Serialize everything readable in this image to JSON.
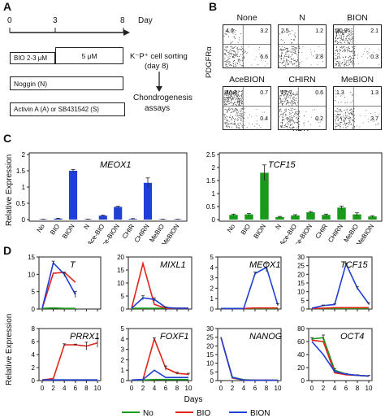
{
  "panelA": {
    "letter": "A",
    "day_label": "Day",
    "ticks": [
      "0",
      "3",
      "8"
    ],
    "bio_box": "BIO 2-3 μM",
    "bio_box2": "5 μM",
    "noggin_box": "Noggin (N)",
    "activin_box": "Activin A (A) or SB431542 (S)",
    "sorting": "K⁻P⁺ cell sorting",
    "sorting_day": "(day 8)",
    "assay1": "Chondrogenesis",
    "assay2": "assays"
  },
  "panelB": {
    "letter": "B",
    "ylabel": "PDGFRα",
    "xlabel": "KDR",
    "plots": [
      {
        "name": "None",
        "ul": "4.0",
        "ur": "3.2",
        "lr": "6.6"
      },
      {
        "name": "N",
        "ul": "2.5",
        "ur": "1.2",
        "lr": "2.8"
      },
      {
        "name": "BION",
        "ul": "30.9",
        "ur": "2.1",
        "lr": "0.3"
      },
      {
        "name": "AceBION",
        "ul": "46.3",
        "ur": "0.7",
        "lr": "0.4"
      },
      {
        "name": "CHIRN",
        "ul": "27.7",
        "ur": "0.6",
        "lr": "0.2"
      },
      {
        "name": "MeBION",
        "ul": "1.3",
        "ur": "1.3",
        "lr": "3.7"
      }
    ]
  },
  "panelC": {
    "letter": "C",
    "ylabel": "Relative Expression",
    "categories": [
      "No",
      "BIO",
      "BION",
      "N",
      "Ace-BIO",
      "Ace-BION",
      "CHIR",
      "CHIRN",
      "MeBIO",
      "MeBION"
    ]
  },
  "panelD": {
    "letter": "D",
    "ylabel": "Relative Expression",
    "xlabel": "Days",
    "legend": [
      {
        "label": "No",
        "color": "#1a9a1a"
      },
      {
        "label": "BIO",
        "color": "#e0241b"
      },
      {
        "label": "BION",
        "color": "#1f3fd6"
      }
    ]
  },
  "chart_data": [
    {
      "type": "bar",
      "title": "MEOX1",
      "ylabel": "Relative Expression",
      "ylim": [
        0,
        2
      ],
      "yticks": [
        0,
        0.5,
        1,
        1.5,
        2
      ],
      "categories": [
        "No",
        "BIO",
        "BION",
        "N",
        "Ace-BIO",
        "Ace-BION",
        "CHIR",
        "CHIRN",
        "MeBIO",
        "MeBION"
      ],
      "values": [
        0.01,
        0.03,
        1.5,
        0.01,
        0.12,
        0.39,
        0.02,
        1.13,
        0.01,
        0.01
      ],
      "errors": [
        0.005,
        0.01,
        0.04,
        0.005,
        0.02,
        0.02,
        0.01,
        0.15,
        0.005,
        0.005
      ],
      "color": "#1f3fd6"
    },
    {
      "type": "bar",
      "title": "TCF15",
      "ylim": [
        0,
        2.5
      ],
      "yticks": [
        0,
        0.5,
        1,
        1.5,
        2,
        2.5
      ],
      "categories": [
        "No",
        "BIO",
        "BION",
        "N",
        "Ace-BIO",
        "Ace-BION",
        "CHIR",
        "CHIRN",
        "MeBIO",
        "MeBION"
      ],
      "values": [
        0.18,
        0.2,
        1.8,
        0.1,
        0.16,
        0.28,
        0.18,
        0.46,
        0.2,
        0.12
      ],
      "errors": [
        0.03,
        0.03,
        0.3,
        0.02,
        0.03,
        0.03,
        0.03,
        0.06,
        0.06,
        0.03
      ],
      "color": "#1a9a1a"
    },
    {
      "type": "line",
      "title": "T",
      "ylim": [
        0,
        15
      ],
      "yticks": [
        0,
        5,
        10,
        15
      ],
      "x": [
        0,
        2,
        4,
        6,
        8,
        10
      ],
      "xticks": [
        0,
        2,
        4,
        6,
        8,
        10
      ],
      "series": [
        {
          "name": "No",
          "color": "#1a9a1a",
          "points": [
            [
              0,
              0.2
            ],
            [
              2,
              0.3
            ],
            [
              4,
              0.2
            ],
            [
              6,
              0.2
            ]
          ]
        },
        {
          "name": "BIO",
          "color": "#e0241b",
          "points": [
            [
              0,
              0.2
            ],
            [
              2,
              10.3
            ],
            [
              4,
              10.6
            ],
            [
              6,
              7.7
            ]
          ]
        },
        {
          "name": "BION",
          "color": "#1f3fd6",
          "points": [
            [
              0,
              0.2
            ],
            [
              2,
              13.3
            ],
            [
              4,
              10.0
            ],
            [
              6,
              4.2
            ]
          ],
          "errors": [
            0,
            0.5,
            0.6,
            0.9
          ]
        }
      ]
    },
    {
      "type": "line",
      "title": "MIXL1",
      "ylim": [
        0,
        20
      ],
      "yticks": [
        0,
        5,
        10,
        15,
        20
      ],
      "x": [
        0,
        2,
        4,
        6,
        8,
        10
      ],
      "xticks": [
        0,
        2,
        4,
        6,
        8,
        10
      ],
      "series": [
        {
          "name": "No",
          "color": "#1a9a1a",
          "points": [
            [
              0,
              0.3
            ],
            [
              2,
              0.3
            ],
            [
              4,
              0.3
            ],
            [
              6,
              0.3
            ],
            [
              8,
              0.3
            ],
            [
              10,
              0.3
            ]
          ]
        },
        {
          "name": "BIO",
          "color": "#e0241b",
          "points": [
            [
              0,
              0.3
            ],
            [
              2,
              17.5
            ],
            [
              4,
              1.8
            ],
            [
              6,
              0.3
            ],
            [
              8,
              0.3
            ],
            [
              10,
              0.3
            ]
          ]
        },
        {
          "name": "BION",
          "color": "#1f3fd6",
          "points": [
            [
              0,
              0.3
            ],
            [
              2,
              4.3
            ],
            [
              4,
              3.7
            ],
            [
              6,
              0.6
            ],
            [
              8,
              0.3
            ],
            [
              10,
              0.3
            ]
          ],
          "errors": [
            0,
            0.8,
            0.6,
            0.2,
            0,
            0
          ]
        }
      ]
    },
    {
      "type": "line",
      "title": "MEOX1",
      "ylim": [
        0,
        5
      ],
      "yticks": [
        0,
        1,
        2,
        3,
        4,
        5
      ],
      "x": [
        0,
        2,
        4,
        6,
        8,
        10
      ],
      "xticks": [
        0,
        2,
        4,
        6,
        8,
        10
      ],
      "series": [
        {
          "name": "No",
          "color": "#1a9a1a",
          "points": [
            [
              0,
              0.05
            ],
            [
              2,
              0.05
            ],
            [
              4,
              0.05
            ],
            [
              6,
              0.05
            ],
            [
              8,
              0.05
            ],
            [
              10,
              0.05
            ]
          ]
        },
        {
          "name": "BIO",
          "color": "#e0241b",
          "points": [
            [
              0,
              0.05
            ],
            [
              2,
              0.05
            ],
            [
              4,
              0.05
            ],
            [
              6,
              0.1
            ],
            [
              8,
              0.1
            ],
            [
              10,
              0.1
            ]
          ]
        },
        {
          "name": "BION",
          "color": "#1f3fd6",
          "points": [
            [
              0,
              0.05
            ],
            [
              2,
              0.05
            ],
            [
              4,
              0.05
            ],
            [
              6,
              3.4
            ],
            [
              8,
              4.0
            ],
            [
              10,
              0.4
            ]
          ],
          "errors": [
            0,
            0,
            0,
            0.15,
            0.4,
            0.1
          ]
        }
      ]
    },
    {
      "type": "line",
      "title": "TCF15",
      "ylim": [
        0,
        30
      ],
      "yticks": [
        0,
        5,
        10,
        15,
        20,
        25,
        30
      ],
      "x": [
        0,
        2,
        4,
        6,
        8,
        10
      ],
      "xticks": [
        0,
        2,
        4,
        6,
        8,
        10
      ],
      "series": [
        {
          "name": "No",
          "color": "#1a9a1a",
          "points": [
            [
              0,
              0.3
            ],
            [
              2,
              0.3
            ],
            [
              4,
              0.3
            ],
            [
              6,
              0.3
            ],
            [
              8,
              0.3
            ],
            [
              10,
              0.3
            ]
          ]
        },
        {
          "name": "BIO",
          "color": "#e0241b",
          "points": [
            [
              0,
              0.3
            ],
            [
              2,
              0.5
            ],
            [
              4,
              0.8
            ],
            [
              6,
              0.8
            ],
            [
              8,
              0.8
            ],
            [
              10,
              0.8
            ]
          ]
        },
        {
          "name": "BION",
          "color": "#1f3fd6",
          "points": [
            [
              0,
              0.5
            ],
            [
              2,
              2.0
            ],
            [
              4,
              2.6
            ],
            [
              6,
              26.0
            ],
            [
              8,
              12.0
            ],
            [
              10,
              3.0
            ]
          ],
          "errors": [
            0,
            0.3,
            0.3,
            0.5,
            0.8,
            0.6
          ]
        }
      ]
    },
    {
      "type": "line",
      "title": "PRRX1",
      "ylim": [
        0,
        8
      ],
      "yticks": [
        0,
        2,
        4,
        6,
        8
      ],
      "x": [
        0,
        2,
        4,
        6,
        8,
        10
      ],
      "xticks": [
        0,
        2,
        4,
        6,
        8,
        10
      ],
      "series": [
        {
          "name": "No",
          "color": "#1a9a1a",
          "points": [
            [
              0,
              0.1
            ],
            [
              2,
              0.1
            ],
            [
              4,
              0.1
            ],
            [
              6,
              0.1
            ],
            [
              8,
              0.1
            ],
            [
              10,
              0.1
            ]
          ]
        },
        {
          "name": "BIO",
          "color": "#e0241b",
          "points": [
            [
              0,
              0.1
            ],
            [
              2,
              0.3
            ],
            [
              4,
              5.5
            ],
            [
              6,
              5.5
            ],
            [
              8,
              5.3
            ],
            [
              10,
              5.8
            ]
          ],
          "errors": [
            0,
            0,
            0.15,
            0.1,
            0.6,
            0.7
          ]
        },
        {
          "name": "BION",
          "color": "#1f3fd6",
          "points": [
            [
              0,
              0.1
            ],
            [
              2,
              0.1
            ],
            [
              4,
              0.1
            ],
            [
              6,
              0.1
            ],
            [
              8,
              0.1
            ],
            [
              10,
              0.1
            ]
          ]
        }
      ]
    },
    {
      "type": "line",
      "title": "FOXF1",
      "ylim": [
        0,
        5
      ],
      "yticks": [
        0,
        1,
        2,
        3,
        4,
        5
      ],
      "x": [
        0,
        2,
        4,
        6,
        8,
        10
      ],
      "xticks": [
        0,
        2,
        4,
        6,
        8,
        10
      ],
      "series": [
        {
          "name": "No",
          "color": "#1a9a1a",
          "points": [
            [
              0,
              0.05
            ],
            [
              2,
              0.05
            ],
            [
              4,
              0.1
            ],
            [
              6,
              0.1
            ],
            [
              8,
              0.1
            ],
            [
              10,
              0.1
            ]
          ]
        },
        {
          "name": "BIO",
          "color": "#e0241b",
          "points": [
            [
              0,
              0.05
            ],
            [
              2,
              0.1
            ],
            [
              4,
              4.0
            ],
            [
              6,
              1.2
            ],
            [
              8,
              0.7
            ],
            [
              10,
              0.6
            ]
          ],
          "errors": [
            0,
            0,
            0.1,
            0.2,
            0.1,
            0.1
          ]
        },
        {
          "name": "BION",
          "color": "#1f3fd6",
          "points": [
            [
              0,
              0.05
            ],
            [
              2,
              0.1
            ],
            [
              4,
              1.0
            ],
            [
              6,
              0.3
            ],
            [
              8,
              0.3
            ],
            [
              10,
              0.3
            ]
          ]
        }
      ]
    },
    {
      "type": "line",
      "title": "NANOG",
      "ylim": [
        0,
        30
      ],
      "yticks": [
        0,
        5,
        10,
        15,
        20,
        25,
        30
      ],
      "x": [
        0,
        2,
        4,
        6,
        8,
        10
      ],
      "xticks": [
        0,
        2,
        4,
        6,
        8,
        10
      ],
      "series": [
        {
          "name": "No",
          "color": "#1a9a1a",
          "points": [
            [
              0,
              25.0
            ],
            [
              2,
              2.0
            ],
            [
              4,
              0.5
            ],
            [
              6,
              0.2
            ],
            [
              8,
              0.2
            ],
            [
              10,
              0.2
            ]
          ]
        },
        {
          "name": "BIO",
          "color": "#e0241b",
          "points": [
            [
              0,
              25.0
            ],
            [
              2,
              1.5
            ],
            [
              4,
              0.3
            ],
            [
              6,
              0.2
            ],
            [
              8,
              0.2
            ],
            [
              10,
              0.2
            ]
          ]
        },
        {
          "name": "BION",
          "color": "#1f3fd6",
          "points": [
            [
              0,
              25.0
            ],
            [
              2,
              1.8
            ],
            [
              4,
              0.3
            ],
            [
              6,
              0.2
            ],
            [
              8,
              0.2
            ],
            [
              10,
              0.2
            ]
          ]
        }
      ]
    },
    {
      "type": "line",
      "title": "OCT4",
      "ylim": [
        0,
        80
      ],
      "yticks": [
        0,
        20,
        40,
        60,
        80
      ],
      "x": [
        0,
        2,
        4,
        6,
        8,
        10
      ],
      "xticks": [
        0,
        2,
        4,
        6,
        8,
        10
      ],
      "series": [
        {
          "name": "No",
          "color": "#1a9a1a",
          "points": [
            [
              0,
              64
            ],
            [
              2,
              66
            ],
            [
              4,
              16
            ],
            [
              6,
              10
            ],
            [
              8,
              8
            ],
            [
              10,
              7
            ]
          ],
          "errors": [
            2,
            4,
            2,
            1,
            1,
            1
          ]
        },
        {
          "name": "BIO",
          "color": "#e0241b",
          "points": [
            [
              0,
              62
            ],
            [
              2,
              60
            ],
            [
              4,
              12
            ],
            [
              6,
              9
            ],
            [
              8,
              8
            ],
            [
              10,
              7
            ]
          ]
        },
        {
          "name": "BION",
          "color": "#1f3fd6",
          "points": [
            [
              0,
              60
            ],
            [
              2,
              40
            ],
            [
              4,
              14
            ],
            [
              6,
              10
            ],
            [
              8,
              8
            ],
            [
              10,
              7
            ]
          ]
        }
      ]
    }
  ]
}
